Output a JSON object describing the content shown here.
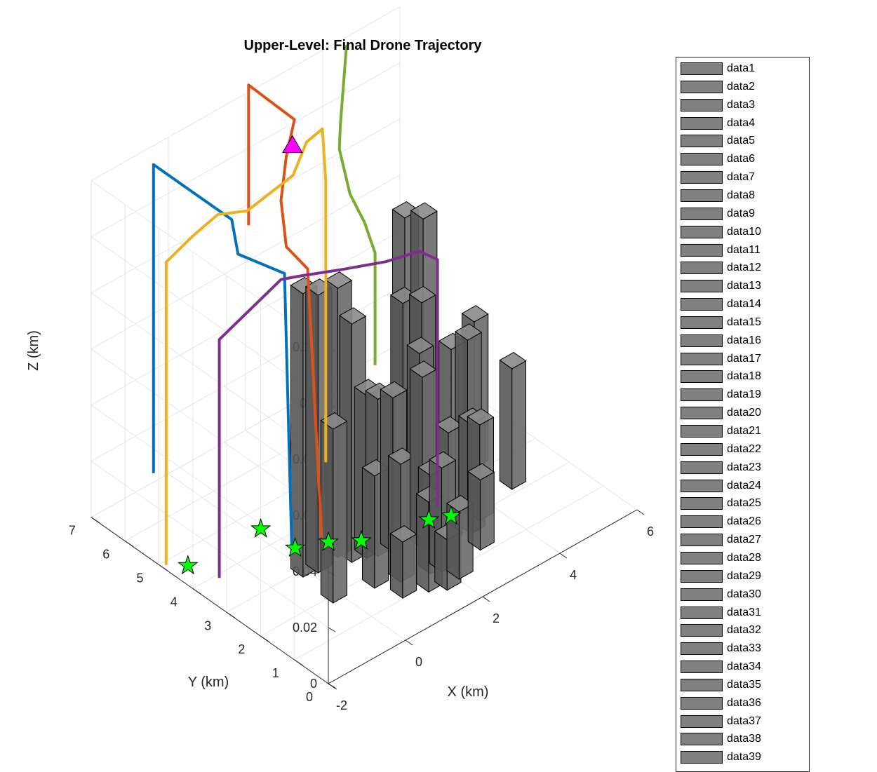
{
  "chart_data": {
    "type": "3d-bar-trajectory",
    "title": "Upper-Level: Final Drone Trajectory",
    "xlabel": "X (km)",
    "ylabel": "Y (km)",
    "zlabel": "Z (km)",
    "xlim": [
      -2,
      6
    ],
    "ylim": [
      0,
      7
    ],
    "zlim": [
      0,
      0.12
    ],
    "xticks": [
      "-2",
      "0",
      "2",
      "4",
      "6"
    ],
    "yticks": [
      "0",
      "1",
      "2",
      "3",
      "4",
      "5",
      "6",
      "7"
    ],
    "zticks": [
      "0",
      "0.02",
      "0.04",
      "0.06",
      "0.08",
      "0.1",
      "0.12"
    ],
    "grid": true,
    "legend": {
      "placement": "right",
      "entries": [
        "data1",
        "data2",
        "data3",
        "data4",
        "data5",
        "data6",
        "data7",
        "data8",
        "data9",
        "data10",
        "data11",
        "data12",
        "data13",
        "data14",
        "data15",
        "data16",
        "data17",
        "data18",
        "data19",
        "data20",
        "data21",
        "data22",
        "data23",
        "data24",
        "data25",
        "data26",
        "data27",
        "data28",
        "data29",
        "data30",
        "data31",
        "data32",
        "data33",
        "data34",
        "data35",
        "data36",
        "data37",
        "data38",
        "data39"
      ]
    },
    "buildings": [
      {
        "x": 0.0,
        "y": 3.0,
        "h": 0.101
      },
      {
        "x": 0.3,
        "y": 2.9,
        "h": 0.099
      },
      {
        "x": 0.9,
        "y": 3.0,
        "h": 0.096
      },
      {
        "x": 1.0,
        "y": 2.7,
        "h": 0.085
      },
      {
        "x": 2.9,
        "y": 3.3,
        "h": 0.103
      },
      {
        "x": 3.2,
        "y": 3.1,
        "h": 0.102
      },
      {
        "x": 2.5,
        "y": 2.9,
        "h": 0.079
      },
      {
        "x": 2.9,
        "y": 2.8,
        "h": 0.077
      },
      {
        "x": -0.1,
        "y": 2.0,
        "h": 0.062
      },
      {
        "x": 1.3,
        "y": 2.6,
        "h": 0.058
      },
      {
        "x": 1.5,
        "y": 2.5,
        "h": 0.056
      },
      {
        "x": 1.8,
        "y": 2.4,
        "h": 0.055
      },
      {
        "x": 2.4,
        "y": 2.3,
        "h": 0.067
      },
      {
        "x": 2.3,
        "y": 2.1,
        "h": 0.061
      },
      {
        "x": 3.4,
        "y": 2.5,
        "h": 0.059
      },
      {
        "x": 4.0,
        "y": 2.7,
        "h": 0.056
      },
      {
        "x": 4.7,
        "y": 3.3,
        "h": 0.052
      },
      {
        "x": 4.8,
        "y": 2.3,
        "h": 0.043
      },
      {
        "x": 0.8,
        "y": 1.8,
        "h": 0.04
      },
      {
        "x": 1.9,
        "y": 1.4,
        "h": 0.035
      },
      {
        "x": 2.8,
        "y": 1.9,
        "h": 0.039
      },
      {
        "x": 3.3,
        "y": 1.8,
        "h": 0.039
      },
      {
        "x": 3.7,
        "y": 2.0,
        "h": 0.034
      },
      {
        "x": 1.3,
        "y": 1.6,
        "h": 0.042
      },
      {
        "x": 2.1,
        "y": 1.3,
        "h": 0.037
      },
      {
        "x": 1.0,
        "y": 1.2,
        "h": 0.02
      },
      {
        "x": 1.5,
        "y": 1.0,
        "h": 0.032
      },
      {
        "x": 3.1,
        "y": 1.3,
        "h": 0.025
      },
      {
        "x": 2.2,
        "y": 0.9,
        "h": 0.024
      },
      {
        "x": 1.8,
        "y": 0.8,
        "h": 0.018
      }
    ],
    "series": [
      {
        "color": "#0072BD",
        "path": [
          [
            -1.35,
            5.9,
            0.02
          ],
          [
            -1.35,
            5.9,
            0.13
          ],
          [
            -0.2,
            4.9,
            0.11
          ],
          [
            -0.3,
            4.6,
            0.101
          ],
          [
            0.2,
            3.8,
            0.097
          ],
          [
            0.3,
            3.7,
            0
          ],
          [
            0.3,
            3.7,
            0
          ]
        ]
      },
      {
        "color": "#D95319",
        "path": [
          [
            0.5,
            5.2,
            0.1
          ],
          [
            0.5,
            5.2,
            0.15
          ],
          [
            1.6,
            5.1,
            0.13
          ],
          [
            1.3,
            5.0,
            0.12
          ],
          [
            0.9,
            4.7,
            0.11
          ],
          [
            0.6,
            4.2,
            0.1
          ],
          [
            0.8,
            3.8,
            0.094
          ],
          [
            0.9,
            3.5,
            0
          ]
        ]
      },
      {
        "color": "#EDB120",
        "path": [
          [
            -1.9,
            4.9,
            0
          ],
          [
            -1.9,
            4.9,
            0.108
          ],
          [
            -1.2,
            4.9,
            0.112
          ],
          [
            -0.3,
            5.2,
            0.11
          ],
          [
            0.2,
            4.9,
            0.11
          ],
          [
            1.3,
            4.8,
            0.115
          ],
          [
            2.0,
            5.2,
            0.118
          ],
          [
            2.5,
            5.3,
            0.118
          ],
          [
            2.5,
            5.2,
            0.1
          ],
          [
            2.5,
            5.2,
            0
          ]
        ]
      },
      {
        "color": "#77AC30",
        "path": [
          [
            3.3,
            5.5,
            0.14
          ],
          [
            3.3,
            5.5,
            0.14
          ],
          [
            2.7,
            5.0,
            0.12
          ],
          [
            2.5,
            4.8,
            0.115
          ],
          [
            2.6,
            4.6,
            0.1
          ],
          [
            2.8,
            4.4,
            0.09
          ],
          [
            2.9,
            4.2,
            0.08
          ],
          [
            2.9,
            4.2,
            0.04
          ]
        ]
      },
      {
        "color": "#7E2F8E",
        "path": [
          [
            -1.4,
            3.9,
            0
          ],
          [
            -1.4,
            3.9,
            0.085
          ],
          [
            0.2,
            3.9,
            0.094
          ],
          [
            0.6,
            3.8,
            0.093
          ],
          [
            1.5,
            3.6,
            0.09
          ],
          [
            2.3,
            3.2,
            0.09
          ],
          [
            3.0,
            3.0,
            0.09
          ],
          [
            3.2,
            2.7,
            0.088
          ],
          [
            3.2,
            2.7,
            0
          ]
        ]
      }
    ],
    "start_markers": [
      [
        -1.6,
        4.6,
        0
      ],
      [
        0.2,
        4.5,
        0
      ],
      [
        0.3,
        3.6,
        0
      ],
      [
        0.9,
        3.3,
        0
      ],
      [
        1.4,
        2.9,
        0
      ],
      [
        2.8,
        2.5,
        0
      ],
      [
        3.2,
        2.3,
        0
      ]
    ],
    "goal_marker": [
      1.9,
      5.5,
      0.115
    ]
  }
}
